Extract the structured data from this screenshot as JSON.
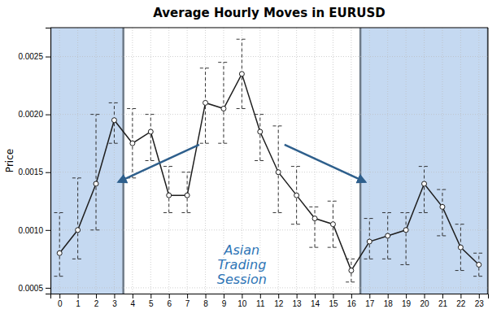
{
  "chart_data": {
    "type": "line",
    "title": "Average Hourly Moves in EURUSD",
    "y_label": "Price",
    "x": [
      0,
      1,
      2,
      3,
      4,
      5,
      6,
      7,
      8,
      9,
      10,
      11,
      12,
      13,
      14,
      15,
      16,
      17,
      18,
      19,
      20,
      21,
      22,
      23
    ],
    "values": [
      0.0008,
      0.001,
      0.0014,
      0.00195,
      0.00175,
      0.00185,
      0.0013,
      0.0013,
      0.0021,
      0.00205,
      0.00235,
      0.00185,
      0.0015,
      0.0013,
      0.0011,
      0.00105,
      0.00065,
      0.0009,
      0.00095,
      0.001,
      0.0014,
      0.0012,
      0.00085,
      0.0007
    ],
    "error_upper": [
      0.00035,
      0.00045,
      0.0006,
      0.00015,
      0.0003,
      0.00015,
      0.00025,
      0.0002,
      0.0003,
      0.0004,
      0.0003,
      0.00015,
      0.0004,
      0.00025,
      0.0001,
      0.0002,
      0.0001,
      0.0002,
      0.0002,
      0.00015,
      0.00015,
      0.00015,
      0.0002,
      0.0001
    ],
    "error_lower": [
      0.0002,
      0.00025,
      0.0004,
      0.0002,
      0.0003,
      0.00025,
      0.00015,
      0.00015,
      0.00035,
      0.0003,
      0.0003,
      0.00025,
      0.00035,
      0.00025,
      0.00025,
      0.0002,
      0.0001,
      0.00015,
      0.0002,
      0.0003,
      0.00025,
      0.00025,
      0.0002,
      0.0001
    ],
    "color": "#1f1f1f",
    "marker": "circle",
    "line_style": "solid",
    "xlim": [
      -0.5,
      23.5
    ],
    "xticks": [
      0,
      1,
      2,
      3,
      4,
      5,
      6,
      7,
      8,
      9,
      10,
      11,
      12,
      13,
      14,
      15,
      16,
      17,
      18,
      19,
      20,
      21,
      22,
      23
    ],
    "ylim": [
      0.00045,
      0.00275
    ],
    "yticks": [
      0.0005,
      {
        "value": 0.001,
        "label": "0.0010"
      },
      0.0015,
      {
        "value": 0.002,
        "label": "0.0020"
      },
      0.0025
    ],
    "grid": true,
    "shaded_regions": [
      {
        "x0": -0.5,
        "x1": 3.5,
        "color": "#c5d9f1"
      },
      {
        "x0": 16.5,
        "x1": 23.5,
        "color": "#c5d9f1"
      }
    ],
    "annotations": [
      {
        "text": "Asian\nTrading\nSession",
        "color": "#2e75b6"
      }
    ]
  }
}
